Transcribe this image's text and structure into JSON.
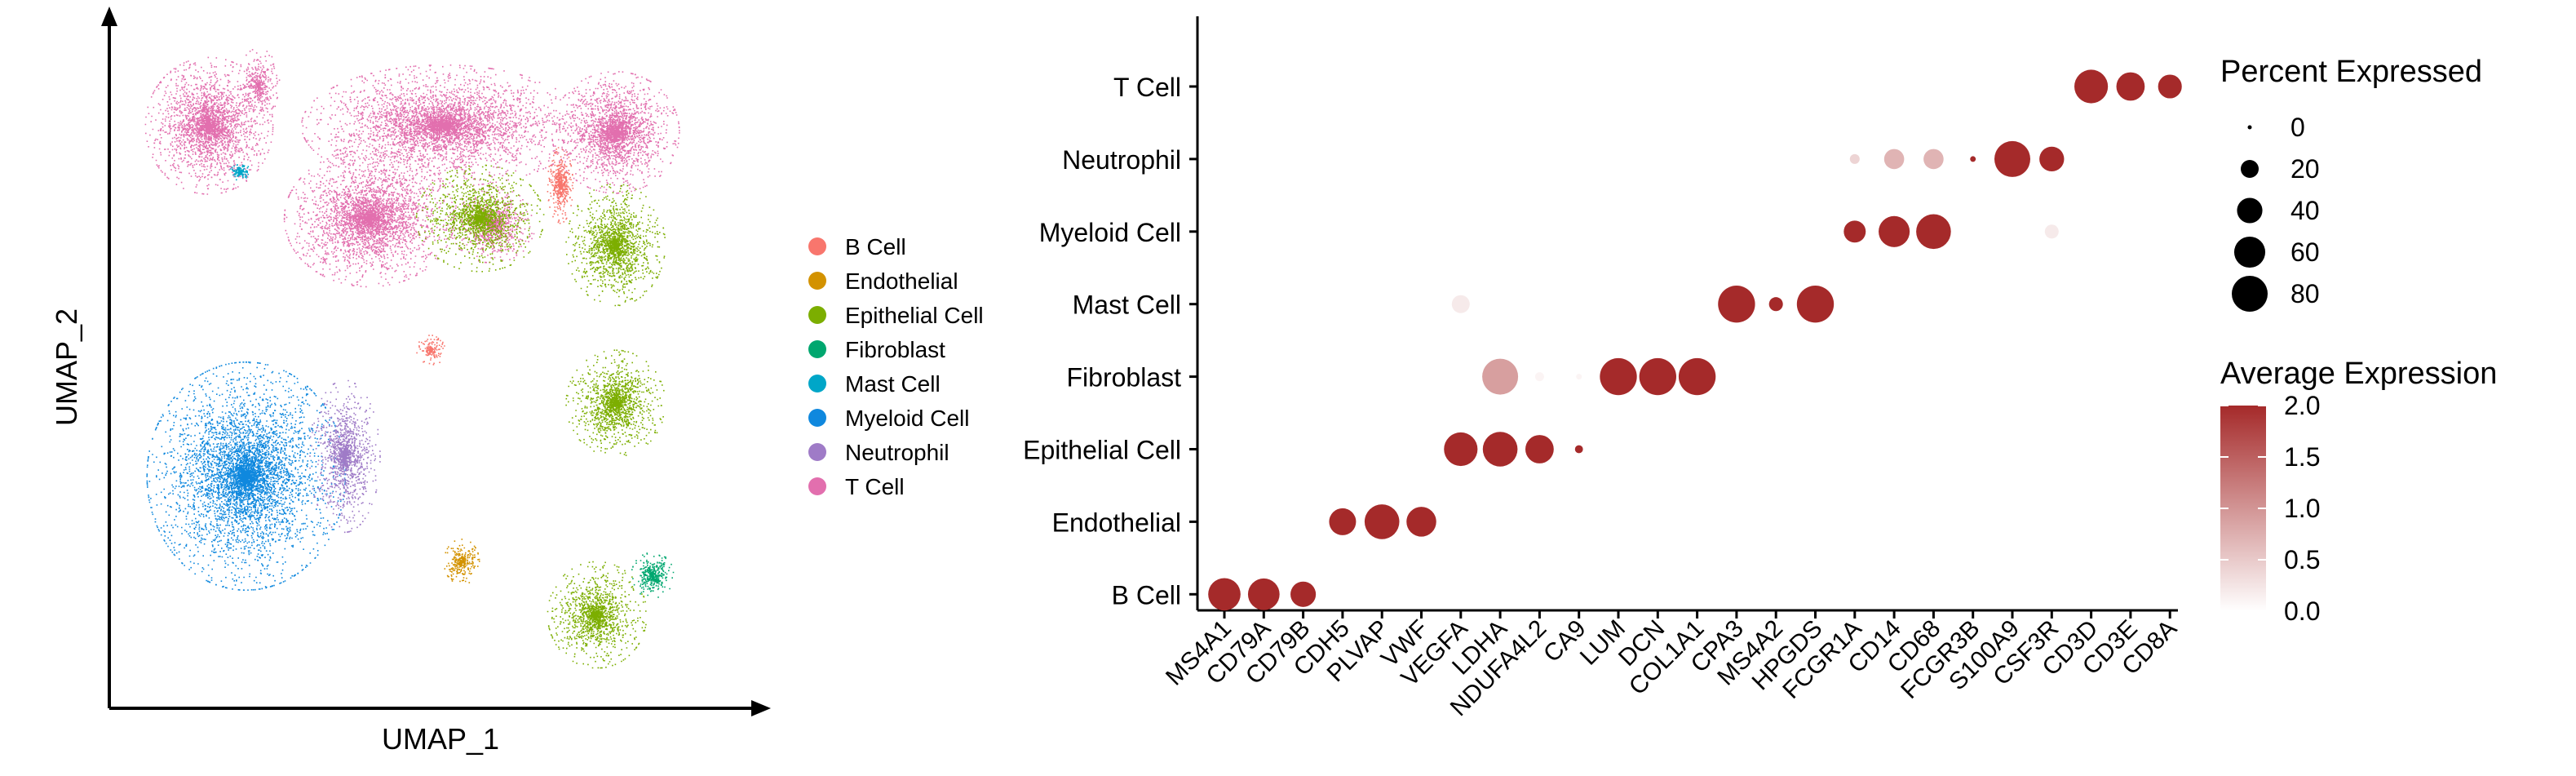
{
  "colors": {
    "B Cell": "#F8766D",
    "Endothelial": "#D39200",
    "Epithelial Cell": "#7CAE00",
    "Fibroblast": "#00A76F",
    "Mast Cell": "#00A6C8",
    "Myeloid Cell": "#0F88DE",
    "Neutrophil": "#9F7BC7",
    "T Cell": "#E26FAE",
    "expr_low": "#FFFFFF",
    "expr_high": "#A52A2A"
  },
  "chart_data": [
    {
      "type": "scatter",
      "xlabel": "UMAP_1",
      "ylabel": "UMAP_2",
      "legend": {
        "placement": "right",
        "entries": [
          "B Cell",
          "Endothelial",
          "Epithelial Cell",
          "Fibroblast",
          "Mast Cell",
          "Myeloid Cell",
          "Neutrophil",
          "T Cell"
        ]
      },
      "axes": "arrows, no ticks",
      "clusters": [
        {
          "name": "T Cell",
          "cx": 0.14,
          "cy": 0.86,
          "rx": 0.09,
          "ry": 0.09,
          "n": 2600
        },
        {
          "name": "T Cell",
          "cx": 0.22,
          "cy": 0.92,
          "rx": 0.03,
          "ry": 0.05,
          "n": 400
        },
        {
          "name": "T Cell",
          "cx": 0.4,
          "cy": 0.72,
          "rx": 0.12,
          "ry": 0.09,
          "n": 3400
        },
        {
          "name": "T Cell",
          "cx": 0.52,
          "cy": 0.86,
          "rx": 0.2,
          "ry": 0.08,
          "n": 4200
        },
        {
          "name": "T Cell",
          "cx": 0.8,
          "cy": 0.85,
          "rx": 0.09,
          "ry": 0.08,
          "n": 2400
        },
        {
          "name": "T Cell",
          "cx": 0.6,
          "cy": 0.71,
          "rx": 0.06,
          "ry": 0.05,
          "n": 900
        },
        {
          "name": "Mast Cell",
          "cx": 0.19,
          "cy": 0.79,
          "rx": 0.015,
          "ry": 0.012,
          "n": 140
        },
        {
          "name": "Epithelial Cell",
          "cx": 0.58,
          "cy": 0.72,
          "rx": 0.09,
          "ry": 0.07,
          "n": 1600
        },
        {
          "name": "Epithelial Cell",
          "cx": 0.8,
          "cy": 0.68,
          "rx": 0.07,
          "ry": 0.08,
          "n": 1700
        },
        {
          "name": "Epithelial Cell",
          "cx": 0.8,
          "cy": 0.44,
          "rx": 0.07,
          "ry": 0.07,
          "n": 1500
        },
        {
          "name": "Epithelial Cell",
          "cx": 0.77,
          "cy": 0.12,
          "rx": 0.07,
          "ry": 0.07,
          "n": 1400
        },
        {
          "name": "B Cell",
          "cx": 0.71,
          "cy": 0.77,
          "rx": 0.018,
          "ry": 0.05,
          "n": 500
        },
        {
          "name": "B Cell",
          "cx": 0.5,
          "cy": 0.52,
          "rx": 0.02,
          "ry": 0.02,
          "n": 160
        },
        {
          "name": "Myeloid Cell",
          "cx": 0.2,
          "cy": 0.33,
          "rx": 0.14,
          "ry": 0.15,
          "n": 5200
        },
        {
          "name": "Neutrophil",
          "cx": 0.36,
          "cy": 0.36,
          "rx": 0.05,
          "ry": 0.1,
          "n": 1300
        },
        {
          "name": "Endothelial",
          "cx": 0.55,
          "cy": 0.2,
          "rx": 0.025,
          "ry": 0.03,
          "n": 320
        },
        {
          "name": "Fibroblast",
          "cx": 0.86,
          "cy": 0.18,
          "rx": 0.03,
          "ry": 0.03,
          "n": 400
        }
      ]
    },
    {
      "type": "scatter",
      "subtype": "dotplot",
      "genes": [
        "MS4A1",
        "CD79A",
        "CD79B",
        "CDH5",
        "PLVAP",
        "VWF",
        "VEGFA",
        "LDHA",
        "NDUFA4L2",
        "CA9",
        "LUM",
        "DCN",
        "COL1A1",
        "CPA3",
        "MS4A2",
        "HPGDS",
        "FCGR1A",
        "CD14",
        "CD68",
        "FCGR3B",
        "S100A9",
        "CSF3R",
        "CD3D",
        "CD3E",
        "CD8A"
      ],
      "cell_types": [
        "B Cell",
        "Endothelial",
        "Epithelial Cell",
        "Fibroblast",
        "Mast Cell",
        "Myeloid Cell",
        "Neutrophil",
        "T Cell"
      ],
      "points": [
        {
          "gene": "MS4A1",
          "cell": "B Cell",
          "pct": 65,
          "avg": 2.0
        },
        {
          "gene": "CD79A",
          "cell": "B Cell",
          "pct": 62,
          "avg": 2.0
        },
        {
          "gene": "CD79B",
          "cell": "B Cell",
          "pct": 40,
          "avg": 2.0
        },
        {
          "gene": "CDH5",
          "cell": "Endothelial",
          "pct": 45,
          "avg": 2.0
        },
        {
          "gene": "PLVAP",
          "cell": "Endothelial",
          "pct": 75,
          "avg": 2.0
        },
        {
          "gene": "VWF",
          "cell": "Endothelial",
          "pct": 55,
          "avg": 2.0
        },
        {
          "gene": "VEGFA",
          "cell": "Epithelial Cell",
          "pct": 70,
          "avg": 2.0
        },
        {
          "gene": "LDHA",
          "cell": "Epithelial Cell",
          "pct": 75,
          "avg": 2.0
        },
        {
          "gene": "NDUFA4L2",
          "cell": "Epithelial Cell",
          "pct": 50,
          "avg": 2.0
        },
        {
          "gene": "CA9",
          "cell": "Epithelial Cell",
          "pct": 4,
          "avg": 2.0
        },
        {
          "gene": "VEGFA",
          "cell": "Mast Cell",
          "pct": 20,
          "avg": 0.2
        },
        {
          "gene": "LDHA",
          "cell": "Fibroblast",
          "pct": 80,
          "avg": 0.9
        },
        {
          "gene": "NDUFA4L2",
          "cell": "Fibroblast",
          "pct": 5,
          "avg": 0.1
        },
        {
          "gene": "CA9",
          "cell": "Fibroblast",
          "pct": 2,
          "avg": 0.1
        },
        {
          "gene": "LUM",
          "cell": "Fibroblast",
          "pct": 85,
          "avg": 2.0
        },
        {
          "gene": "DCN",
          "cell": "Fibroblast",
          "pct": 85,
          "avg": 2.0
        },
        {
          "gene": "COL1A1",
          "cell": "Fibroblast",
          "pct": 85,
          "avg": 2.0
        },
        {
          "gene": "CPA3",
          "cell": "Mast Cell",
          "pct": 85,
          "avg": 2.0
        },
        {
          "gene": "MS4A2",
          "cell": "Mast Cell",
          "pct": 12,
          "avg": 2.0
        },
        {
          "gene": "HPGDS",
          "cell": "Mast Cell",
          "pct": 85,
          "avg": 2.0
        },
        {
          "gene": "FCGR1A",
          "cell": "Myeloid Cell",
          "pct": 30,
          "avg": 2.0
        },
        {
          "gene": "CD14",
          "cell": "Myeloid Cell",
          "pct": 60,
          "avg": 2.0
        },
        {
          "gene": "CD68",
          "cell": "Myeloid Cell",
          "pct": 75,
          "avg": 2.0
        },
        {
          "gene": "CSF3R",
          "cell": "Myeloid Cell",
          "pct": 12,
          "avg": 0.2
        },
        {
          "gene": "FCGR1A",
          "cell": "Neutrophil",
          "pct": 6,
          "avg": 0.4
        },
        {
          "gene": "CD14",
          "cell": "Neutrophil",
          "pct": 25,
          "avg": 0.7
        },
        {
          "gene": "CD68",
          "cell": "Neutrophil",
          "pct": 25,
          "avg": 0.7
        },
        {
          "gene": "FCGR3B",
          "cell": "Neutrophil",
          "pct": 2,
          "avg": 2.0
        },
        {
          "gene": "S100A9",
          "cell": "Neutrophil",
          "pct": 80,
          "avg": 2.0
        },
        {
          "gene": "CSF3R",
          "cell": "Neutrophil",
          "pct": 38,
          "avg": 2.0
        },
        {
          "gene": "CD3D",
          "cell": "T Cell",
          "pct": 70,
          "avg": 2.0
        },
        {
          "gene": "CD3E",
          "cell": "T Cell",
          "pct": 50,
          "avg": 2.0
        },
        {
          "gene": "CD8A",
          "cell": "T Cell",
          "pct": 35,
          "avg": 2.0
        }
      ],
      "size_legend": {
        "title": "Percent Expressed",
        "values": [
          0,
          20,
          40,
          60,
          80
        ]
      },
      "color_legend": {
        "title": "Average Expression",
        "ticks": [
          "2.0",
          "1.5",
          "1.0",
          "0.5",
          "0.0"
        ],
        "range": [
          0,
          2
        ]
      }
    }
  ]
}
